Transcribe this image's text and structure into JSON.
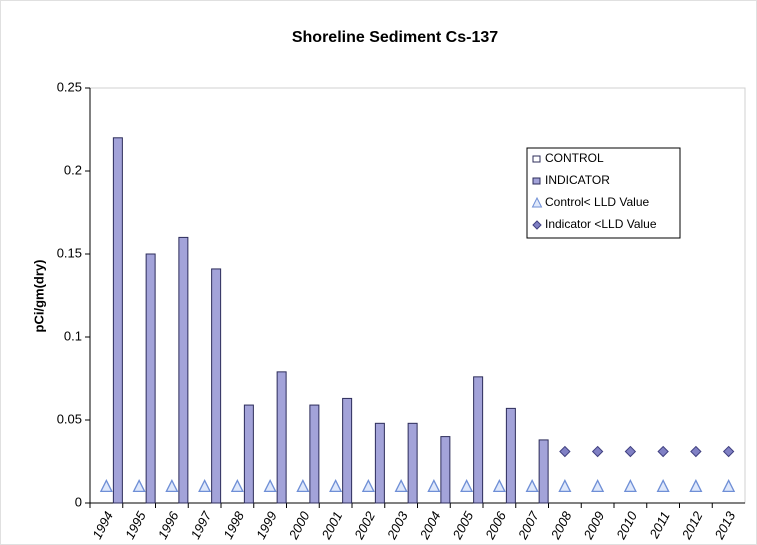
{
  "chart_data": {
    "type": "bar",
    "title": "Shoreline Sediment Cs-137",
    "y_label": "pCi/gm(dry)",
    "categories": [
      "1994",
      "1995",
      "1996",
      "1997",
      "1998",
      "1999",
      "2000",
      "2001",
      "2002",
      "2003",
      "2004",
      "2005",
      "2006",
      "2007",
      "2008",
      "2009",
      "2010",
      "2011",
      "2012",
      "2013"
    ],
    "ylim": [
      0,
      0.25
    ],
    "yticks": [
      0,
      0.05,
      0.1,
      0.15,
      0.2,
      0.25
    ],
    "grid": false,
    "legend": "upper right",
    "series": [
      {
        "name": "CONTROL",
        "color": "#ffffff",
        "mark": "bar",
        "values": [
          null,
          null,
          null,
          null,
          null,
          null,
          null,
          null,
          null,
          null,
          null,
          null,
          null,
          null,
          null,
          null,
          null,
          null,
          null,
          null
        ]
      },
      {
        "name": "INDICATOR",
        "color": "#a3a3d9",
        "mark": "bar",
        "values": [
          0.22,
          0.15,
          0.16,
          0.141,
          0.059,
          0.079,
          0.059,
          0.063,
          0.048,
          0.048,
          0.04,
          0.076,
          0.057,
          0.038,
          null,
          null,
          null,
          null,
          null,
          null
        ]
      },
      {
        "name": "Control< LLD Value",
        "color": "#6f8fd6",
        "mark": "triangle",
        "values": [
          0.01,
          0.01,
          0.01,
          0.01,
          0.01,
          0.01,
          0.01,
          0.01,
          0.01,
          0.01,
          0.01,
          0.01,
          0.01,
          0.01,
          0.01,
          0.01,
          0.01,
          0.01,
          0.01,
          0.01
        ]
      },
      {
        "name": "Indicator <LLD Value",
        "color": "#8080c4",
        "mark": "diamond",
        "values": [
          null,
          null,
          null,
          null,
          null,
          null,
          null,
          null,
          null,
          null,
          null,
          null,
          null,
          null,
          0.031,
          0.031,
          0.031,
          0.031,
          0.031,
          0.031
        ]
      }
    ]
  }
}
